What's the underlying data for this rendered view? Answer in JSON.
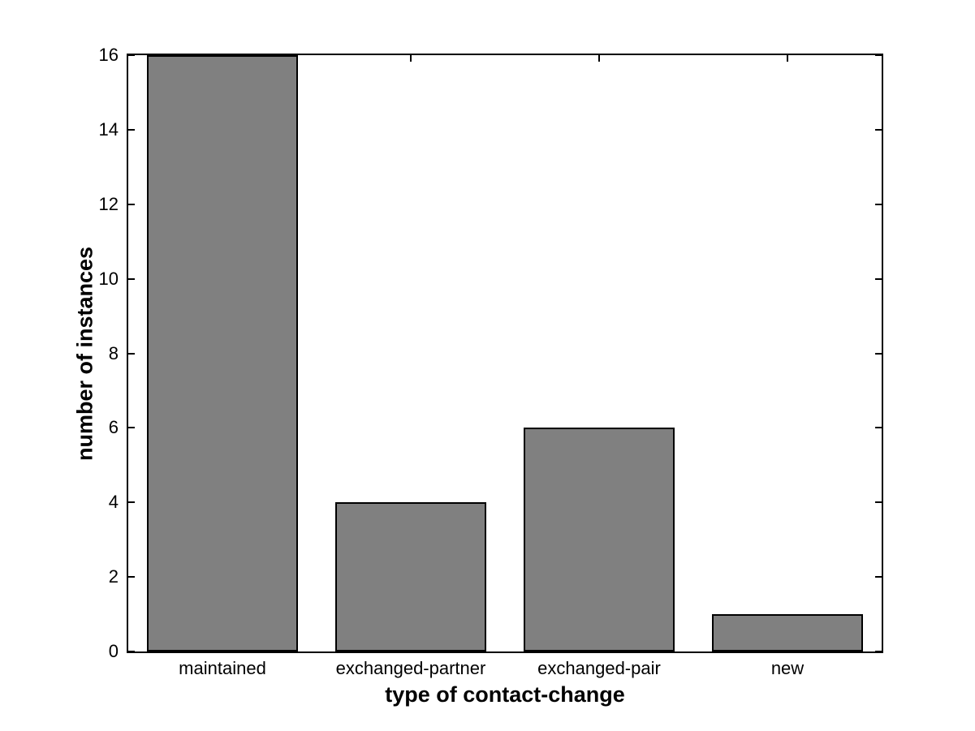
{
  "chart_data": {
    "type": "bar",
    "categories": [
      "maintained",
      "exchanged-partner",
      "exchanged-pair",
      "new"
    ],
    "values": [
      16,
      4,
      6,
      1
    ],
    "xlabel": "type of contact-change",
    "ylabel": "number of instances",
    "ylim": [
      0,
      16
    ],
    "yticks": [
      0,
      2,
      4,
      6,
      8,
      10,
      12,
      14,
      16
    ],
    "bar_width_fraction": 0.8,
    "grid": false,
    "legend_position": "none",
    "colors": {
      "bar_fill": "#808080",
      "bar_edge": "#000000",
      "axis": "#000000",
      "text": "#000000",
      "background": "#ffffff"
    }
  }
}
